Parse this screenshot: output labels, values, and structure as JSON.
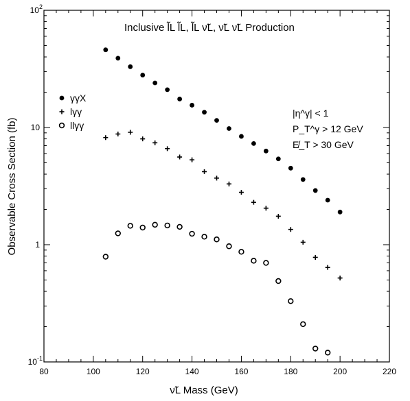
{
  "chart_data": {
    "type": "scatter",
    "title": "Inclusive l̃L l̃L, l̃L ν̃L, ν̃L ν̃L Production",
    "xlabel": "ν̃L Mass (GeV)",
    "ylabel": "Observable Cross Section (fb)",
    "xlim": [
      80,
      220
    ],
    "ylim": [
      0.1,
      100
    ],
    "yscale": "log",
    "x_ticks": [
      80,
      100,
      120,
      140,
      160,
      180,
      200,
      220
    ],
    "y_ticks": [
      {
        "value": 0.1,
        "base": "10",
        "exp": "-1"
      },
      {
        "value": 1,
        "base": "1",
        "exp": ""
      },
      {
        "value": 10,
        "base": "10",
        "exp": ""
      },
      {
        "value": 100,
        "base": "10",
        "exp": "2"
      }
    ],
    "grid": false,
    "legend_position": "left",
    "annotations": [
      "|η^γ| < 1",
      "P_T^γ > 12 GeV",
      "E̸_T > 30 GeV"
    ],
    "series": [
      {
        "name": "γγX",
        "marker": "filled-circle",
        "x": [
          105,
          110,
          115,
          120,
          125,
          130,
          135,
          140,
          145,
          150,
          155,
          160,
          165,
          170,
          175,
          180,
          185,
          190,
          195,
          200
        ],
        "y": [
          46,
          39,
          33,
          28,
          24,
          21,
          17.5,
          15.5,
          13.5,
          11.5,
          9.8,
          8.4,
          7.3,
          6.3,
          5.4,
          4.5,
          3.6,
          2.9,
          2.4,
          1.9
        ]
      },
      {
        "name": "lγγ",
        "marker": "plus",
        "x": [
          105,
          110,
          115,
          120,
          125,
          130,
          135,
          140,
          145,
          150,
          155,
          160,
          165,
          170,
          175,
          180,
          185,
          190,
          195,
          200
        ],
        "y": [
          8.2,
          8.8,
          9.1,
          8.0,
          7.4,
          6.6,
          5.6,
          5.3,
          4.2,
          3.7,
          3.3,
          2.8,
          2.3,
          2.05,
          1.75,
          1.35,
          1.05,
          0.78,
          0.64,
          0.52
        ]
      },
      {
        "name": "llγγ",
        "marker": "open-circle",
        "x": [
          105,
          110,
          115,
          120,
          125,
          130,
          135,
          140,
          145,
          150,
          155,
          160,
          165,
          170,
          175,
          180,
          185,
          190,
          195
        ],
        "y": [
          0.79,
          1.25,
          1.45,
          1.4,
          1.48,
          1.46,
          1.42,
          1.24,
          1.17,
          1.11,
          0.97,
          0.87,
          0.73,
          0.7,
          0.49,
          0.33,
          0.21,
          0.13,
          0.12
        ]
      }
    ]
  }
}
